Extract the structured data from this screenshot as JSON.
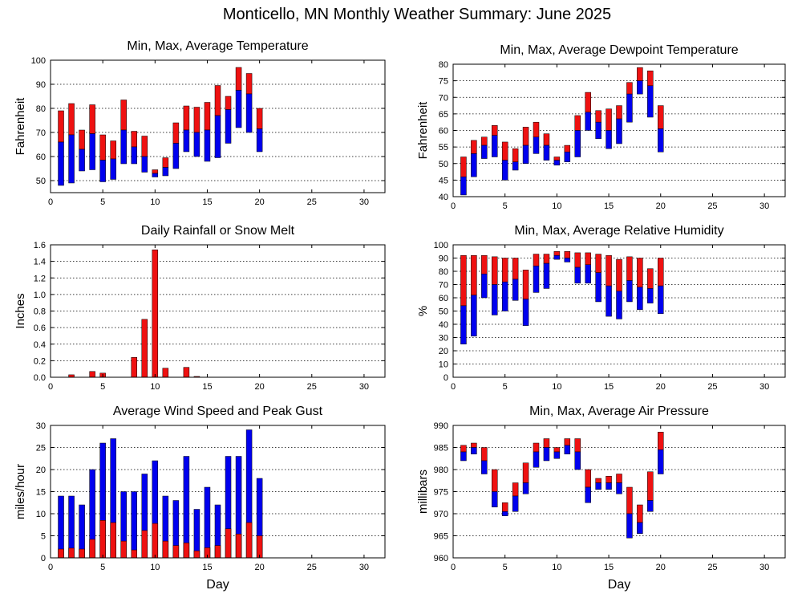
{
  "figure_title": "Monticello, MN Monthly Weather Summary: June 2025",
  "colors": {
    "red": "#ee1111",
    "blue": "#0000ee",
    "outline": "#000000"
  },
  "chart_data": [
    {
      "id": "temperature",
      "type": "bar",
      "title": "Min, Max, Average Temperature",
      "ylabel": "Fahrenheit",
      "xlabel": "",
      "xlim": [
        0,
        32
      ],
      "ylim": [
        45,
        100
      ],
      "xticks": [
        0,
        5,
        10,
        15,
        20,
        25,
        30
      ],
      "yticks": [
        50,
        60,
        70,
        80,
        90,
        100
      ],
      "grid": true,
      "encoding": "floating bar: red from avg to max, blue from min to avg",
      "days": [
        1,
        2,
        3,
        4,
        5,
        6,
        7,
        8,
        9,
        10,
        11,
        12,
        13,
        14,
        15,
        16,
        17,
        18,
        19,
        20
      ],
      "min": [
        48,
        49,
        54,
        54.5,
        49.5,
        50.5,
        57,
        57,
        53.5,
        51.5,
        52,
        55,
        62,
        60,
        58,
        59.5,
        65.5,
        72,
        70,
        62
      ],
      "avg": [
        66,
        69,
        63,
        69.5,
        58.5,
        59,
        71,
        64,
        60,
        53,
        55.5,
        65.5,
        71,
        70,
        71,
        77,
        79.5,
        87.5,
        86,
        71.5
      ],
      "max": [
        79,
        82,
        71,
        81.5,
        69,
        66.5,
        83.5,
        70.5,
        68.5,
        54.5,
        59.5,
        74,
        81,
        80.5,
        82.5,
        89.5,
        85,
        97,
        94.5,
        80
      ]
    },
    {
      "id": "dewpoint",
      "type": "bar",
      "title": "Min, Max, Average Dewpoint Temperature",
      "ylabel": "Fahrenheit",
      "xlabel": "",
      "xlim": [
        0,
        32
      ],
      "ylim": [
        40,
        80
      ],
      "xticks": [
        0,
        5,
        10,
        15,
        20,
        25,
        30
      ],
      "yticks": [
        40,
        45,
        50,
        55,
        60,
        65,
        70,
        75,
        80
      ],
      "grid": true,
      "encoding": "floating bar: red from avg to max, blue from min to avg",
      "days": [
        1,
        2,
        3,
        4,
        5,
        6,
        7,
        8,
        9,
        10,
        11,
        12,
        13,
        14,
        15,
        16,
        17,
        18,
        19,
        20
      ],
      "min": [
        40.5,
        46,
        51.5,
        52,
        45,
        48,
        50,
        53,
        51,
        49.5,
        50.5,
        52,
        60,
        57.5,
        54.5,
        56,
        62.5,
        71,
        64,
        53.5
      ],
      "avg": [
        46,
        53,
        55.5,
        58.5,
        51,
        50.5,
        55.5,
        58,
        55.5,
        51,
        53.5,
        60,
        65.5,
        62.5,
        60,
        63.5,
        71,
        75,
        73.5,
        60.5
      ],
      "max": [
        52,
        57,
        58,
        61.5,
        56.5,
        54.5,
        61,
        62.5,
        59,
        52,
        55.5,
        64.5,
        71.5,
        66,
        66.5,
        67.5,
        74.5,
        79,
        78,
        67.5
      ]
    },
    {
      "id": "rainfall",
      "type": "bar",
      "title": "Daily Rainfall or Snow Melt",
      "ylabel": "Inches",
      "xlabel": "",
      "xlim": [
        0,
        32
      ],
      "ylim": [
        0,
        1.6
      ],
      "xticks": [
        0,
        5,
        10,
        15,
        20,
        25,
        30
      ],
      "yticks": [
        0,
        0.2,
        0.4,
        0.6,
        0.8,
        1.0,
        1.2,
        1.4,
        1.6
      ],
      "ytick_labels": [
        "0.0",
        "0.2",
        "0.4",
        "0.6",
        "0.8",
        "1.0",
        "1.2",
        "1.4",
        "1.6"
      ],
      "grid": true,
      "encoding": "red bar from zero",
      "days": [
        2,
        4,
        5,
        8,
        9,
        10,
        11,
        13,
        14
      ],
      "values": [
        0.03,
        0.07,
        0.05,
        0.24,
        0.7,
        1.54,
        0.11,
        0.12,
        0.01
      ]
    },
    {
      "id": "humidity",
      "type": "bar",
      "title": "Min, Max, Average Relative Humidity",
      "ylabel": "%",
      "xlabel": "",
      "xlim": [
        0,
        32
      ],
      "ylim": [
        0,
        100
      ],
      "xticks": [
        0,
        5,
        10,
        15,
        20,
        25,
        30
      ],
      "yticks": [
        0,
        10,
        20,
        30,
        40,
        50,
        60,
        70,
        80,
        90,
        100
      ],
      "grid": true,
      "encoding": "floating bar: red from avg to max, blue from min to avg",
      "days": [
        1,
        2,
        3,
        4,
        5,
        6,
        7,
        8,
        9,
        10,
        11,
        12,
        13,
        14,
        15,
        16,
        17,
        18,
        19,
        20
      ],
      "min": [
        25,
        31,
        60,
        47,
        50,
        58,
        39,
        64,
        67,
        89,
        87,
        71,
        71,
        57,
        46,
        44,
        57,
        51,
        56,
        48
      ],
      "avg": [
        54,
        62,
        78,
        70,
        72,
        74,
        59,
        84,
        86,
        92,
        90,
        83,
        85,
        79,
        69,
        65,
        73,
        68,
        67,
        69
      ],
      "max": [
        92,
        92,
        92,
        91,
        90,
        90,
        81,
        93,
        93,
        95,
        95,
        94,
        94,
        93,
        92,
        89,
        91,
        90,
        82,
        90
      ]
    },
    {
      "id": "wind",
      "type": "bar",
      "title": "Average Wind Speed and Peak Gust",
      "ylabel": "miles/hour",
      "xlabel": "Day",
      "xlim": [
        0,
        32
      ],
      "ylim": [
        0,
        30
      ],
      "xticks": [
        0,
        5,
        10,
        15,
        20,
        25,
        30
      ],
      "yticks": [
        0,
        5,
        10,
        15,
        20,
        25,
        30
      ],
      "grid": true,
      "encoding": "blue bar from zero to peak gust, red bar from zero to average speed",
      "days": [
        1,
        2,
        3,
        4,
        5,
        6,
        7,
        8,
        9,
        10,
        11,
        12,
        13,
        14,
        15,
        16,
        17,
        18,
        19,
        20
      ],
      "peak_gust": [
        14,
        14,
        12,
        20,
        26,
        27,
        15,
        15,
        19,
        22,
        14,
        13,
        23,
        11,
        16,
        12,
        23,
        23,
        29,
        18
      ],
      "avg_speed": [
        2,
        2.2,
        2,
        4.2,
        8.5,
        8,
        3.8,
        1.8,
        6.2,
        7.8,
        3.8,
        2.8,
        3.4,
        1.6,
        2.3,
        2.8,
        6.6,
        5.4,
        8,
        5
      ]
    },
    {
      "id": "pressure",
      "type": "bar",
      "title": "Min, Max, Average Air Pressure",
      "ylabel": "millibars",
      "xlabel": "Day",
      "xlim": [
        0,
        32
      ],
      "ylim": [
        960,
        990
      ],
      "xticks": [
        0,
        5,
        10,
        15,
        20,
        25,
        30
      ],
      "yticks": [
        960,
        965,
        970,
        975,
        980,
        985,
        990
      ],
      "grid": true,
      "encoding": "floating bar: red from avg to max, blue from min to avg",
      "days": [
        1,
        2,
        3,
        4,
        5,
        6,
        7,
        8,
        9,
        10,
        11,
        12,
        13,
        14,
        15,
        16,
        17,
        18,
        19,
        20
      ],
      "min": [
        982,
        983.5,
        979,
        971.5,
        969.5,
        970.5,
        974.5,
        980.5,
        982,
        982.5,
        983.5,
        980,
        972.5,
        975.5,
        975.5,
        974.5,
        964.5,
        965.5,
        970.5,
        979
      ],
      "avg": [
        984,
        985,
        982,
        975,
        970.5,
        974,
        977,
        984,
        985,
        984,
        985.5,
        984,
        976,
        977,
        977,
        977,
        970,
        968,
        973,
        984.5
      ],
      "max": [
        985.5,
        986,
        985,
        980,
        972.5,
        977,
        981.5,
        986,
        987,
        985,
        987,
        987,
        980,
        978,
        978.5,
        979,
        976,
        972,
        979.5,
        988.5
      ]
    }
  ]
}
